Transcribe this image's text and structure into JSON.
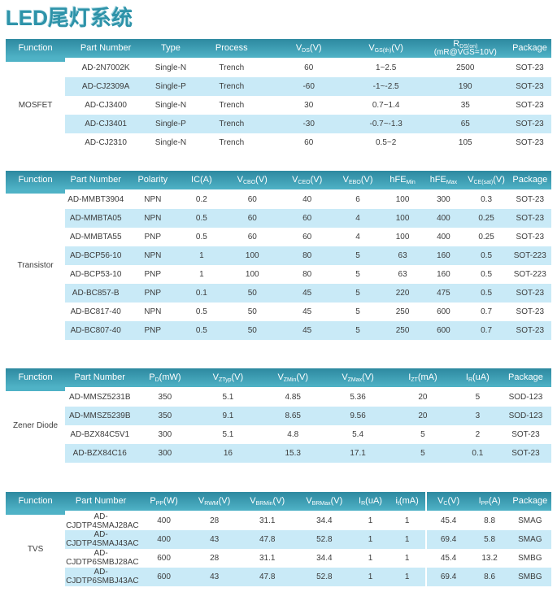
{
  "page_title": "LED尾灯系统",
  "colors": {
    "accent": "#2e93a9",
    "header_gradient_top": "#2d89a0",
    "header_gradient_bottom": "#4fb2c6",
    "stripe_row": "#c9eaf7",
    "body_text": "#3c3c3c",
    "header_text": "#ffffff"
  },
  "tables": [
    {
      "id": "mosfet",
      "function": "MOSFET",
      "columns": [
        "Function",
        "Part Number",
        "Type",
        "Process",
        "V~DS~(V)",
        "V~GS(th)~(V)",
        "R~DS(on)~\n(mR@VGS=10V)",
        "Package"
      ],
      "rows": [
        [
          "AD-2N7002K",
          "Single-N",
          "Trench",
          "60",
          "1~2.5",
          "2500",
          "SOT-23"
        ],
        [
          "AD-CJ2309A",
          "Single-P",
          "Trench",
          "-60",
          "-1~-2.5",
          "190",
          "SOT-23"
        ],
        [
          "AD-CJ3400",
          "Single-N",
          "Trench",
          "30",
          "0.7~1.4",
          "35",
          "SOT-23"
        ],
        [
          "AD-CJ3401",
          "Single-P",
          "Trench",
          "-30",
          "-0.7~-1.3",
          "65",
          "SOT-23"
        ],
        [
          "AD-CJ2310",
          "Single-N",
          "Trench",
          "60",
          "0.5~2",
          "105",
          "SOT-23"
        ]
      ]
    },
    {
      "id": "transistor",
      "function": "Transistor",
      "columns": [
        "Function",
        "Part Number",
        "Polarity",
        "IC(A)",
        "V~CBO~(V)",
        "V~CEO~(V)",
        "V~EBO~(V)",
        "hFE~Min~",
        "hFE~Max~",
        "V~CE(sat)~(V)",
        "Package"
      ],
      "rows": [
        [
          "AD-MMBT3904",
          "NPN",
          "0.2",
          "60",
          "40",
          "6",
          "100",
          "300",
          "0.3",
          "SOT-23"
        ],
        [
          "AD-MMBTA05",
          "NPN",
          "0.5",
          "60",
          "60",
          "4",
          "100",
          "400",
          "0.25",
          "SOT-23"
        ],
        [
          "AD-MMBTA55",
          "PNP",
          "0.5",
          "60",
          "60",
          "4",
          "100",
          "400",
          "0.25",
          "SOT-23"
        ],
        [
          "AD-BCP56-10",
          "NPN",
          "1",
          "100",
          "80",
          "5",
          "63",
          "160",
          "0.5",
          "SOT-223"
        ],
        [
          "AD-BCP53-10",
          "PNP",
          "1",
          "100",
          "80",
          "5",
          "63",
          "160",
          "0.5",
          "SOT-223"
        ],
        [
          "AD-BC857-B",
          "PNP",
          "0.1",
          "50",
          "45",
          "5",
          "220",
          "475",
          "0.5",
          "SOT-23"
        ],
        [
          "AD-BC817-40",
          "NPN",
          "0.5",
          "50",
          "45",
          "5",
          "250",
          "600",
          "0.7",
          "SOT-23"
        ],
        [
          "AD-BC807-40",
          "PNP",
          "0.5",
          "50",
          "45",
          "5",
          "250",
          "600",
          "0.7",
          "SOT-23"
        ]
      ]
    },
    {
      "id": "zener",
      "function": "Zener Diode",
      "columns": [
        "Function",
        "Part Number",
        "P~D~(mW)",
        "V~ZTyp~(V)",
        "V~ZMin~(V)",
        "V~ZMax~(V)",
        "I~ZT~(mA)",
        "I~R~(uA)",
        "Package"
      ],
      "rows": [
        [
          "AD-MMSZ5231B",
          "350",
          "5.1",
          "4.85",
          "5.36",
          "20",
          "5",
          "SOD-123"
        ],
        [
          "AD-MMSZ5239B",
          "350",
          "9.1",
          "8.65",
          "9.56",
          "20",
          "3",
          "SOD-123"
        ],
        [
          "AD-BZX84C5V1",
          "300",
          "5.1",
          "4.8",
          "5.4",
          "5",
          "2",
          "SOT-23"
        ],
        [
          "AD-BZX84C16",
          "300",
          "16",
          "15.3",
          "17.1",
          "5",
          "0.1",
          "SOT-23"
        ]
      ]
    },
    {
      "id": "tvs",
      "function": "TVS",
      "columns": [
        "Function",
        "Part Number",
        "P~PP~(W)",
        "V~RWM~(V)",
        "V~BRMin~(V)",
        "V~BRMax~(V)",
        "I~R~(uA)",
        "i~t~(mA)",
        "V~C~(V)",
        "I~PP~(A)",
        "Package"
      ],
      "rows": [
        [
          "AD-CJDTP4SMAJ28AC",
          "400",
          "28",
          "31.1",
          "34.4",
          "1",
          "1",
          "45.4",
          "8.8",
          "SMAG"
        ],
        [
          "AD-CJDTP4SMAJ43AC",
          "400",
          "43",
          "47.8",
          "52.8",
          "1",
          "1",
          "69.4",
          "5.8",
          "SMAG"
        ],
        [
          "AD-CJDTP6SMBJ28AC",
          "600",
          "28",
          "31.1",
          "34.4",
          "1",
          "1",
          "45.4",
          "13.2",
          "SMBG"
        ],
        [
          "AD-CJDTP6SMBJ43AC",
          "600",
          "43",
          "47.8",
          "52.8",
          "1",
          "1",
          "69.4",
          "8.6",
          "SMBG"
        ]
      ]
    }
  ]
}
